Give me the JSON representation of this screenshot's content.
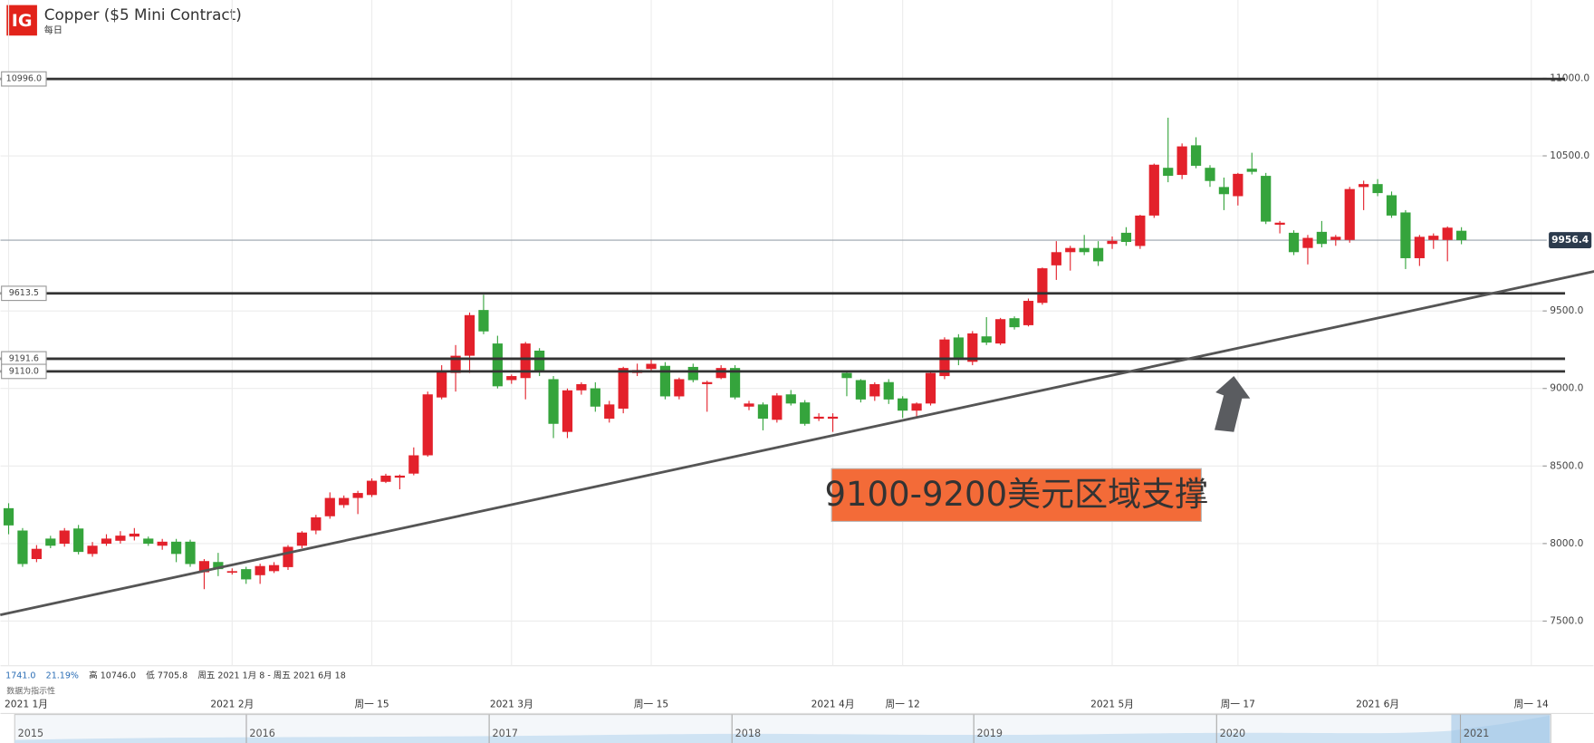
{
  "chart_data": {
    "type": "candlestick",
    "title": "Copper ($5 Mini Contract)",
    "subtitle": "每日",
    "logo": "IG",
    "stats": [
      "1741.0",
      "21.19%",
      "高 10746.0",
      "低 7705.8",
      "周五 2021 1月 8 - 周五 2021 6月 18"
    ],
    "note": "数据为指示性",
    "annotation": "9100-9200美元区域支撑",
    "up_color": "#e3212b",
    "down_color": "#35a43c",
    "categories": [
      "2021 1月",
      null,
      null,
      null,
      null,
      null,
      null,
      null,
      null,
      null,
      null,
      null,
      null,
      null,
      null,
      null,
      "2021 2月",
      null,
      null,
      null,
      null,
      null,
      null,
      null,
      null,
      null,
      "周一 15",
      null,
      null,
      null,
      null,
      null,
      null,
      null,
      null,
      null,
      "2021 3月",
      null,
      null,
      null,
      null,
      null,
      null,
      null,
      null,
      null,
      "周一 15",
      null,
      null,
      null,
      null,
      null,
      null,
      null,
      null,
      null,
      null,
      null,
      null,
      "2021 4月",
      null,
      null,
      null,
      null,
      "周一 12",
      null,
      null,
      null,
      null,
      null,
      null,
      null,
      null,
      null,
      null,
      null,
      null,
      null,
      null,
      "2021 5月",
      null,
      null,
      null,
      null,
      null,
      null,
      null,
      null,
      "周一 17",
      null,
      null,
      null,
      null,
      null,
      null,
      null,
      null,
      null,
      "2021 6月",
      null,
      null,
      null,
      null,
      null,
      null,
      null,
      null,
      null,
      null,
      "周一 14",
      null
    ],
    "open": [
      8228,
      8084,
      7900,
      8032,
      7999,
      8097,
      7933,
      7999,
      8018,
      8045,
      8032,
      7986,
      8012,
      8012,
      7815,
      7881,
      7815,
      7835,
      7796,
      7822,
      7848,
      7986,
      8084,
      8176,
      8248,
      8294,
      8313,
      8398,
      8425,
      8451,
      8569,
      8942,
      9100,
      9211,
      9506,
      9290,
      9054,
      9067,
      9244,
      9060,
      8720,
      8988,
      9001,
      8805,
      8870,
      9100,
      9126,
      9146,
      8949,
      9139,
      9028,
      9067,
      9132,
      8883,
      8897,
      8798,
      8962,
      8910,
      8805,
      8805,
      9100,
      9054,
      8949,
      9041,
      8936,
      8857,
      8903,
      9080,
      9329,
      9172,
      9336,
      9290,
      9453,
      9408,
      9552,
      9794,
      9879,
      9906,
      9906,
      9932,
      10004,
      9919,
      10115,
      10423,
      10377,
      10568,
      10423,
      10299,
      10240,
      10417,
      10371,
      10056,
      10004,
      9906,
      10010,
      9958,
      9958,
      10299,
      10318,
      10246,
      10135,
      9840,
      9958,
      9958,
      10017,
      null,
      null,
      null,
      null,
      null,
      null
    ],
    "high": [
      8260,
      8100,
      7990,
      8050,
      8100,
      8120,
      8010,
      8060,
      8080,
      8100,
      8045,
      8030,
      8030,
      8025,
      7900,
      7940,
      7840,
      7850,
      7870,
      7880,
      7990,
      8080,
      8185,
      8330,
      8310,
      8340,
      8420,
      8450,
      8445,
      8620,
      8980,
      9150,
      9280,
      9490,
      9604,
      9340,
      9090,
      9300,
      9260,
      9080,
      9000,
      9040,
      9040,
      8920,
      9140,
      9160,
      9190,
      9170,
      9070,
      9160,
      9050,
      9150,
      9150,
      8920,
      8910,
      8970,
      8990,
      8925,
      8840,
      8840,
      9110,
      9060,
      9040,
      9060,
      8950,
      8910,
      9110,
      9330,
      9350,
      9370,
      9460,
      9455,
      9465,
      9580,
      9780,
      9950,
      9920,
      9990,
      9950,
      9980,
      10040,
      10120,
      10450,
      10746,
      10580,
      10620,
      10440,
      10360,
      10390,
      10520,
      10390,
      10080,
      10020,
      9990,
      10080,
      9990,
      10300,
      10340,
      10350,
      10270,
      10150,
      9990,
      10000,
      10045,
      10040,
      null,
      null,
      null,
      null,
      null,
      null
    ],
    "low": [
      8060,
      7850,
      7880,
      7970,
      7980,
      7930,
      7915,
      7985,
      8000,
      8020,
      7985,
      7960,
      7880,
      7850,
      7705.8,
      7790,
      7800,
      7740,
      7740,
      7810,
      7830,
      7970,
      8060,
      8160,
      8230,
      8190,
      8300,
      8390,
      8350,
      8440,
      8560,
      8930,
      8980,
      9100,
      9350,
      9000,
      9030,
      8930,
      9080,
      8680,
      8680,
      8960,
      8850,
      8780,
      8840,
      9080,
      9110,
      8930,
      8930,
      9040,
      8850,
      9060,
      8930,
      8860,
      8730,
      8780,
      8890,
      8760,
      8790,
      8720,
      8950,
      8910,
      8920,
      8900,
      8810,
      8820,
      8890,
      9060,
      9150,
      9150,
      9280,
      9280,
      9380,
      9400,
      9540,
      9700,
      9760,
      9860,
      9790,
      9900,
      9920,
      9900,
      10100,
      10330,
      10350,
      10420,
      10300,
      10150,
      10180,
      10380,
      10060,
      10000,
      9860,
      9800,
      9910,
      9920,
      9940,
      10150,
      10240,
      10100,
      9770,
      9790,
      9900,
      9820,
      9930,
      null,
      null,
      null,
      null,
      null,
      null
    ],
    "close": [
      8117,
      7868,
      7966,
      7986,
      8084,
      7946,
      7986,
      8032,
      8051,
      8064,
      7999,
      8012,
      7933,
      7868,
      7887,
      7835,
      7822,
      7769,
      7855,
      7861,
      7979,
      8071,
      8169,
      8294,
      8294,
      8326,
      8405,
      8438,
      8438,
      8569,
      8962,
      9113,
      9211,
      9473,
      9368,
      9014,
      9080,
      9290,
      9113,
      8772,
      8988,
      9028,
      8883,
      8897,
      9132,
      9119,
      9159,
      8949,
      9060,
      9054,
      9041,
      9132,
      8942,
      8903,
      8805,
      8955,
      8903,
      8772,
      8818,
      8818,
      9067,
      8929,
      9028,
      8929,
      8857,
      8903,
      9100,
      9316,
      9185,
      9355,
      9296,
      9447,
      9395,
      9565,
      9775,
      9879,
      9906,
      9879,
      9820,
      9952,
      9945,
      10115,
      10443,
      10371,
      10561,
      10436,
      10338,
      10253,
      10384,
      10397,
      10076,
      10069,
      9879,
      9971,
      9932,
      9978,
      10286,
      10318,
      10260,
      10115,
      9840,
      9978,
      9985,
      10037,
      9956.4,
      null,
      null,
      null,
      null,
      null,
      null
    ],
    "last_price": {
      "value": 9956.4,
      "label": "9956.4"
    },
    "hlines": [
      {
        "value": 10996,
        "label": "10996.0"
      },
      {
        "value": 9613.5,
        "label": "9613.5"
      },
      {
        "value": 9191.6,
        "label": "9191.6"
      },
      {
        "value": 9110,
        "label": "9110.0"
      }
    ],
    "trendline": {
      "x": [
        -0.6,
        113.5
      ],
      "y": [
        7540,
        9755
      ]
    },
    "ylim": [
      7212,
      11505
    ],
    "yticks": [
      {
        "value": 7500,
        "label": "7500.0"
      },
      {
        "value": 8000,
        "label": "8000.0"
      },
      {
        "value": 8500,
        "label": "8500.0"
      },
      {
        "value": 9000,
        "label": "9000.0"
      },
      {
        "value": 9500,
        "label": "9500.0"
      },
      {
        "value": 10500,
        "label": "10500.0"
      },
      {
        "value": 11000,
        "label": "11000.0"
      }
    ],
    "grid": true,
    "navigator": [
      "2015",
      "2016",
      "2017",
      "2018",
      "2019",
      "2020",
      "2021"
    ]
  }
}
